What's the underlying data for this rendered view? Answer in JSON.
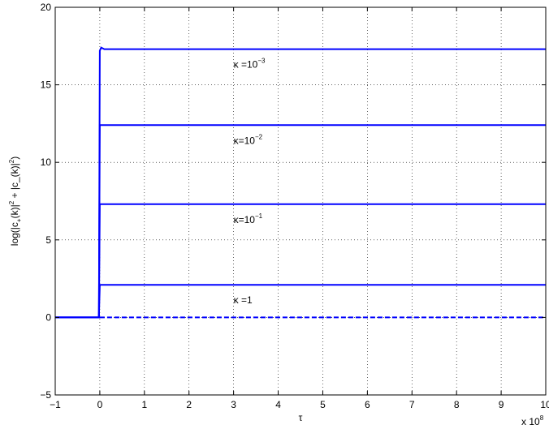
{
  "chart_data": {
    "type": "line",
    "xlabel": "τ",
    "ylabel_parts": [
      "log(|c",
      "+",
      "(k)|",
      "2",
      " + |c_(k)|",
      "2",
      ")"
    ],
    "x_multiplier": {
      "base": "x 10",
      "exp": "8"
    },
    "xlim": [
      -1,
      10
    ],
    "ylim": [
      -5,
      20
    ],
    "x_ticks": [
      -1,
      0,
      1,
      2,
      3,
      4,
      5,
      6,
      7,
      8,
      9,
      10
    ],
    "y_ticks": [
      -5,
      0,
      5,
      10,
      15,
      20
    ],
    "grid": true,
    "series": [
      {
        "label": "κ=1",
        "points": [
          [
            -1,
            0
          ],
          [
            -0.02,
            0
          ],
          [
            0,
            2.1
          ],
          [
            10,
            2.1
          ]
        ]
      },
      {
        "label": "κ=10",
        "label_exp": "−1",
        "points": [
          [
            -1,
            0
          ],
          [
            -0.02,
            0
          ],
          [
            0,
            7.3
          ],
          [
            10,
            7.3
          ]
        ]
      },
      {
        "label": "κ=10",
        "label_exp": "−2",
        "points": [
          [
            -1,
            0
          ],
          [
            -0.02,
            0
          ],
          [
            0,
            12.4
          ],
          [
            10,
            12.4
          ]
        ]
      },
      {
        "label": "κ=10",
        "label_exp": "−3",
        "points": [
          [
            -1,
            0
          ],
          [
            -0.02,
            0
          ],
          [
            0,
            17.2
          ],
          [
            0.03,
            17.4
          ],
          [
            0.1,
            17.3
          ],
          [
            10,
            17.3
          ]
        ]
      }
    ],
    "baseline": {
      "style": "dashed",
      "points": [
        [
          0,
          0
        ],
        [
          10,
          0
        ]
      ]
    },
    "annotations": [
      {
        "text": "κ =1",
        "x": 3.0,
        "y": 0.9
      },
      {
        "text": "κ=10",
        "exp": "−1",
        "x": 3.0,
        "y": 6.1
      },
      {
        "text": "κ=10",
        "exp": "−2",
        "x": 3.0,
        "y": 11.2
      },
      {
        "text": "κ =10",
        "exp": "−3",
        "x": 3.0,
        "y": 16.1
      }
    ],
    "color": "#0000ff"
  }
}
